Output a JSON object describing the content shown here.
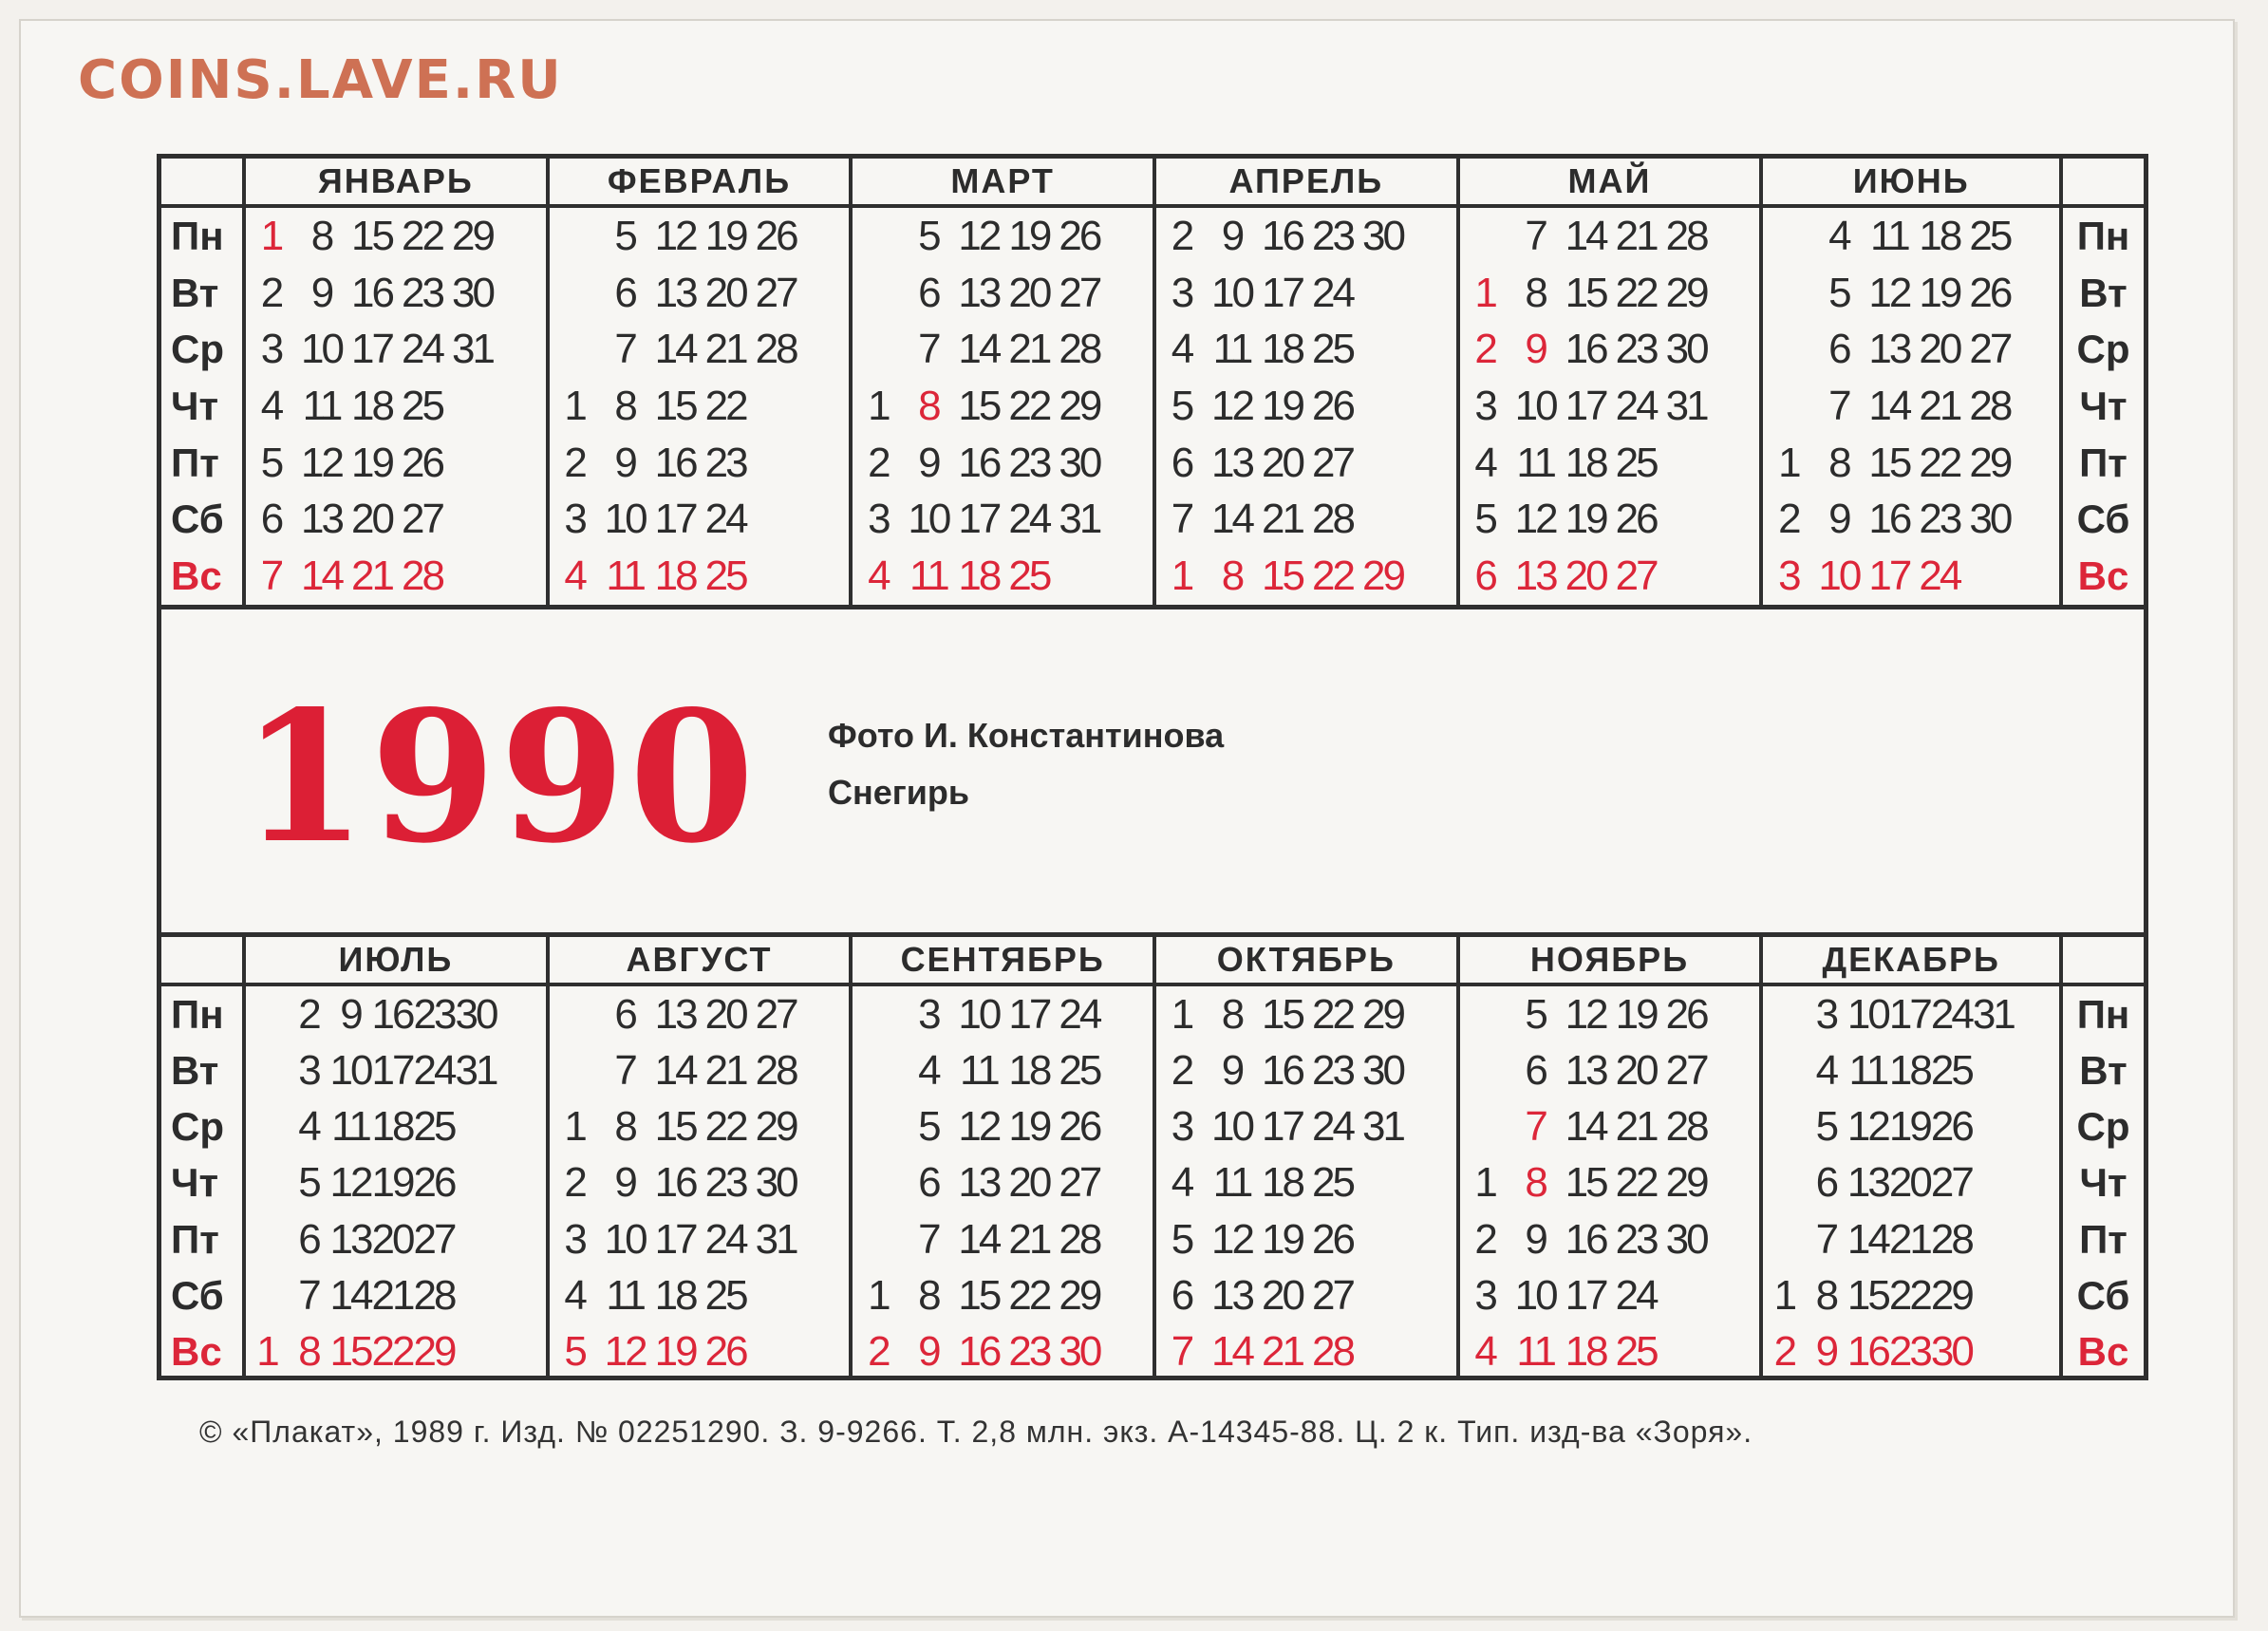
{
  "watermark": "COINS.LAVE.RU",
  "year": "1990",
  "credit": "Фото И. Константинова",
  "photo_title": "Снегирь",
  "imprint": "© «Плакат», 1989 г. Изд. № 02251290. З. 9-9266. Т. 2,8 млн. экз. А-14345-88. Ц. 2 к. Тип. изд-ва «Зоря».",
  "days": [
    "Пн",
    "Вт",
    "Ср",
    "Чт",
    "Пт",
    "Сб",
    "Вс"
  ],
  "colors": {
    "red": "#dc2639",
    "ink": "#2c2c2c"
  },
  "half1": [
    {
      "name": "ЯНВАРЬ",
      "weeks": [
        [
          "1",
          "8",
          "15",
          "22",
          "29"
        ],
        [
          "2",
          "9",
          "16",
          "23",
          "30"
        ],
        [
          "3",
          "10",
          "17",
          "24",
          "31"
        ],
        [
          "4",
          "11",
          "18",
          "25",
          ""
        ],
        [
          "5",
          "12",
          "19",
          "26",
          ""
        ],
        [
          "6",
          "13",
          "20",
          "27",
          ""
        ],
        [
          "7",
          "14",
          "21",
          "28",
          ""
        ]
      ],
      "red": [
        "1"
      ]
    },
    {
      "name": "ФЕВРАЛЬ",
      "weeks": [
        [
          "",
          "5",
          "12",
          "19",
          "26"
        ],
        [
          "",
          "6",
          "13",
          "20",
          "27"
        ],
        [
          "",
          "7",
          "14",
          "21",
          "28"
        ],
        [
          "1",
          "8",
          "15",
          "22",
          ""
        ],
        [
          "2",
          "9",
          "16",
          "23",
          ""
        ],
        [
          "3",
          "10",
          "17",
          "24",
          ""
        ],
        [
          "4",
          "11",
          "18",
          "25",
          ""
        ]
      ],
      "red": []
    },
    {
      "name": "МАРТ",
      "weeks": [
        [
          "",
          "5",
          "12",
          "19",
          "26"
        ],
        [
          "",
          "6",
          "13",
          "20",
          "27"
        ],
        [
          "",
          "7",
          "14",
          "21",
          "28"
        ],
        [
          "1",
          "8",
          "15",
          "22",
          "29"
        ],
        [
          "2",
          "9",
          "16",
          "23",
          "30"
        ],
        [
          "3",
          "10",
          "17",
          "24",
          "31"
        ],
        [
          "4",
          "11",
          "18",
          "25",
          ""
        ]
      ],
      "red": [
        "8"
      ]
    },
    {
      "name": "АПРЕЛЬ",
      "weeks": [
        [
          "2",
          "9",
          "16",
          "23",
          "30"
        ],
        [
          "3",
          "10",
          "17",
          "24",
          ""
        ],
        [
          "4",
          "11",
          "18",
          "25",
          ""
        ],
        [
          "5",
          "12",
          "19",
          "26",
          ""
        ],
        [
          "6",
          "13",
          "20",
          "27",
          ""
        ],
        [
          "7",
          "14",
          "21",
          "28",
          ""
        ],
        [
          "1",
          "8",
          "15",
          "22",
          "29"
        ]
      ],
      "red": []
    },
    {
      "name": "МАЙ",
      "weeks": [
        [
          "",
          "7",
          "14",
          "21",
          "28"
        ],
        [
          "1",
          "8",
          "15",
          "22",
          "29"
        ],
        [
          "2",
          "9",
          "16",
          "23",
          "30"
        ],
        [
          "3",
          "10",
          "17",
          "24",
          "31"
        ],
        [
          "4",
          "11",
          "18",
          "25",
          ""
        ],
        [
          "5",
          "12",
          "19",
          "26",
          ""
        ],
        [
          "6",
          "13",
          "20",
          "27",
          ""
        ]
      ],
      "red": [
        "1",
        "2",
        "9"
      ]
    },
    {
      "name": "ИЮНЬ",
      "weeks": [
        [
          "",
          "4",
          "11",
          "18",
          "25"
        ],
        [
          "",
          "5",
          "12",
          "19",
          "26"
        ],
        [
          "",
          "6",
          "13",
          "20",
          "27"
        ],
        [
          "",
          "7",
          "14",
          "21",
          "28"
        ],
        [
          "1",
          "8",
          "15",
          "22",
          "29"
        ],
        [
          "2",
          "9",
          "16",
          "23",
          "30"
        ],
        [
          "3",
          "10",
          "17",
          "24",
          ""
        ]
      ],
      "red": []
    }
  ],
  "half2": [
    {
      "name": "ИЮЛЬ",
      "weeks": [
        [
          "",
          "2",
          "9",
          "16",
          "23",
          "30"
        ],
        [
          "",
          "3",
          "10",
          "17",
          "24",
          "31"
        ],
        [
          "",
          "4",
          "11",
          "18",
          "25",
          ""
        ],
        [
          "",
          "5",
          "12",
          "19",
          "26",
          ""
        ],
        [
          "",
          "6",
          "13",
          "20",
          "27",
          ""
        ],
        [
          "",
          "7",
          "14",
          "21",
          "28",
          ""
        ],
        [
          "1",
          "8",
          "15",
          "22",
          "29",
          ""
        ]
      ],
      "red": []
    },
    {
      "name": "АВГУСТ",
      "weeks": [
        [
          "",
          "6",
          "13",
          "20",
          "27"
        ],
        [
          "",
          "7",
          "14",
          "21",
          "28"
        ],
        [
          "1",
          "8",
          "15",
          "22",
          "29"
        ],
        [
          "2",
          "9",
          "16",
          "23",
          "30"
        ],
        [
          "3",
          "10",
          "17",
          "24",
          "31"
        ],
        [
          "4",
          "11",
          "18",
          "25",
          ""
        ],
        [
          "5",
          "12",
          "19",
          "26",
          ""
        ]
      ],
      "red": []
    },
    {
      "name": "СЕНТЯБРЬ",
      "weeks": [
        [
          "",
          "3",
          "10",
          "17",
          "24"
        ],
        [
          "",
          "4",
          "11",
          "18",
          "25"
        ],
        [
          "",
          "5",
          "12",
          "19",
          "26"
        ],
        [
          "",
          "6",
          "13",
          "20",
          "27"
        ],
        [
          "",
          "7",
          "14",
          "21",
          "28"
        ],
        [
          "1",
          "8",
          "15",
          "22",
          "29"
        ],
        [
          "2",
          "9",
          "16",
          "23",
          "30"
        ]
      ],
      "red": []
    },
    {
      "name": "ОКТЯБРЬ",
      "weeks": [
        [
          "1",
          "8",
          "15",
          "22",
          "29"
        ],
        [
          "2",
          "9",
          "16",
          "23",
          "30"
        ],
        [
          "3",
          "10",
          "17",
          "24",
          "31"
        ],
        [
          "4",
          "11",
          "18",
          "25",
          ""
        ],
        [
          "5",
          "12",
          "19",
          "26",
          ""
        ],
        [
          "6",
          "13",
          "20",
          "27",
          ""
        ],
        [
          "7",
          "14",
          "21",
          "28",
          ""
        ]
      ],
      "red": []
    },
    {
      "name": "НОЯБРЬ",
      "weeks": [
        [
          "",
          "5",
          "12",
          "19",
          "26"
        ],
        [
          "",
          "6",
          "13",
          "20",
          "27"
        ],
        [
          "",
          "7",
          "14",
          "21",
          "28"
        ],
        [
          "1",
          "8",
          "15",
          "22",
          "29"
        ],
        [
          "2",
          "9",
          "16",
          "23",
          "30"
        ],
        [
          "3",
          "10",
          "17",
          "24",
          ""
        ],
        [
          "4",
          "11",
          "18",
          "25",
          ""
        ]
      ],
      "red": [
        "7",
        "8"
      ]
    },
    {
      "name": "ДЕКАБРЬ",
      "weeks": [
        [
          "",
          "3",
          "10",
          "17",
          "24",
          "31"
        ],
        [
          "",
          "4",
          "11",
          "18",
          "25",
          ""
        ],
        [
          "",
          "5",
          "12",
          "19",
          "26",
          ""
        ],
        [
          "",
          "6",
          "13",
          "20",
          "27",
          ""
        ],
        [
          "",
          "7",
          "14",
          "21",
          "28",
          ""
        ],
        [
          "1",
          "8",
          "15",
          "22",
          "29",
          ""
        ],
        [
          "2",
          "9",
          "16",
          "23",
          "30",
          ""
        ]
      ],
      "red": []
    }
  ]
}
